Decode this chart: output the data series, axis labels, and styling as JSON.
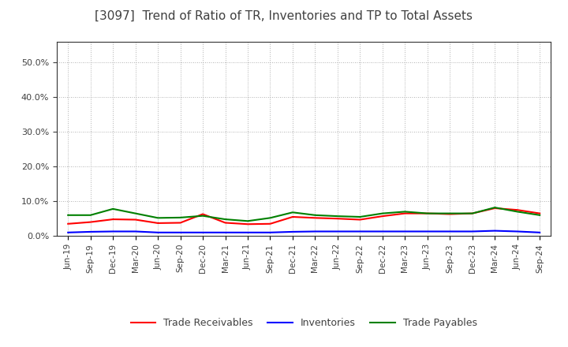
{
  "title": "[3097]  Trend of Ratio of TR, Inventories and TP to Total Assets",
  "x_labels": [
    "Jun-19",
    "Sep-19",
    "Dec-19",
    "Mar-20",
    "Jun-20",
    "Sep-20",
    "Dec-20",
    "Mar-21",
    "Jun-21",
    "Sep-21",
    "Dec-21",
    "Mar-22",
    "Jun-22",
    "Sep-22",
    "Dec-22",
    "Mar-23",
    "Jun-23",
    "Sep-23",
    "Dec-23",
    "Mar-24",
    "Jun-24",
    "Sep-24"
  ],
  "trade_receivables": [
    0.035,
    0.04,
    0.048,
    0.047,
    0.037,
    0.038,
    0.063,
    0.038,
    0.034,
    0.035,
    0.055,
    0.052,
    0.05,
    0.047,
    0.057,
    0.065,
    0.065,
    0.063,
    0.065,
    0.08,
    0.075,
    0.065
  ],
  "inventories": [
    0.01,
    0.012,
    0.013,
    0.013,
    0.01,
    0.01,
    0.01,
    0.01,
    0.01,
    0.01,
    0.012,
    0.013,
    0.013,
    0.013,
    0.013,
    0.013,
    0.013,
    0.013,
    0.013,
    0.015,
    0.013,
    0.01
  ],
  "trade_payables": [
    0.06,
    0.06,
    0.078,
    0.065,
    0.052,
    0.053,
    0.058,
    0.048,
    0.043,
    0.052,
    0.068,
    0.06,
    0.057,
    0.055,
    0.065,
    0.07,
    0.065,
    0.065,
    0.065,
    0.082,
    0.07,
    0.06
  ],
  "tr_color": "#ff0000",
  "inv_color": "#0000ff",
  "tp_color": "#008000",
  "ylim": [
    0.0,
    0.56
  ],
  "yticks": [
    0.0,
    0.1,
    0.2,
    0.3,
    0.4,
    0.5
  ],
  "legend_tr": "Trade Receivables",
  "legend_inv": "Inventories",
  "legend_tp": "Trade Payables",
  "bg_color": "#ffffff",
  "grid_color": "#999999",
  "title_color": "#404040",
  "tick_color": "#404040"
}
